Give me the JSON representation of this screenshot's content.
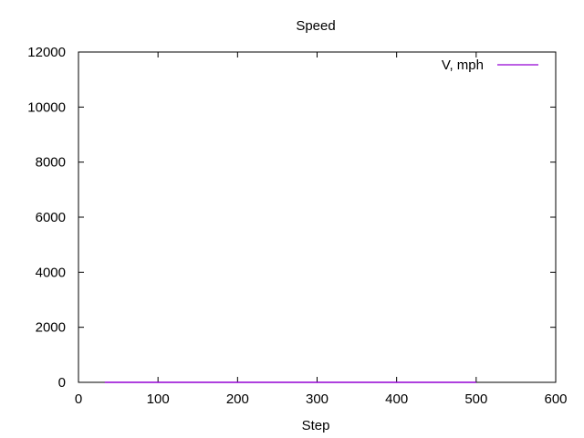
{
  "chart_data": {
    "type": "line",
    "title": "Speed",
    "xlabel": "Step",
    "ylabel": "",
    "xlim": [
      0,
      600
    ],
    "ylim": [
      0,
      12000
    ],
    "xticks": [
      0,
      100,
      200,
      300,
      400,
      500,
      600
    ],
    "yticks": [
      0,
      2000,
      4000,
      6000,
      8000,
      10000,
      12000
    ],
    "xtick_labels": [
      "0",
      "100",
      "200",
      "300",
      "400",
      "500",
      "600"
    ],
    "ytick_labels": [
      "0",
      "2000",
      "4000",
      "6000",
      "8000",
      "10000",
      "12000"
    ],
    "grid": false,
    "legend_position": "top-right",
    "series": [
      {
        "name": "V, mph",
        "color": "#9400d3",
        "x": [
          33,
          100,
          200,
          300,
          400,
          500
        ],
        "y": [
          0,
          0,
          0,
          0,
          0,
          0
        ]
      }
    ]
  }
}
